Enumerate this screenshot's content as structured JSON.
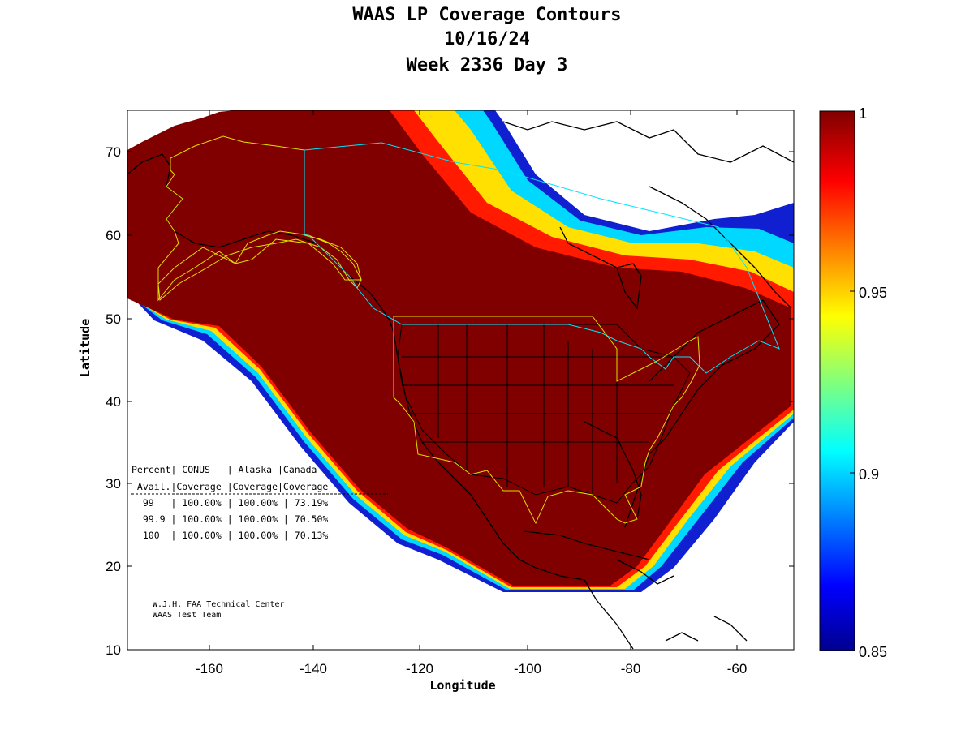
{
  "title": {
    "line1": "WAAS LP Coverage Contours",
    "line2": "10/16/24",
    "line3": "Week 2336 Day 3"
  },
  "axes": {
    "xlabel": "Longitude",
    "ylabel": "Latitude",
    "xticks": [
      "-160",
      "-140",
      "-120",
      "-100",
      "-80",
      "-60"
    ],
    "yticks": [
      "70",
      "60",
      "50",
      "40",
      "30",
      "20",
      "10"
    ]
  },
  "colorbar": {
    "ticks": [
      "1",
      "0.95",
      "0.9",
      "0.85"
    ],
    "colors": [
      "#800000",
      "#ff0000",
      "#ffff00",
      "#00ffff",
      "#0000ff",
      "#00008f"
    ]
  },
  "table": {
    "header1": "Percent| CONUS   | Alaska |Canada",
    "header2": " Avail.|Coverage |Coverage|Coverage",
    "rows": [
      "  99   | 100.00% | 100.00% | 73.19%",
      "  99.9 | 100.00% | 100.00% | 70.50%",
      "  100  | 100.00% | 100.00% | 70.13%"
    ]
  },
  "credit": {
    "line1": "W.J.H. FAA Technical Center",
    "line2": "WAAS Test Team"
  },
  "chart_data": {
    "type": "heatmap",
    "xlabel": "Longitude",
    "ylabel": "Latitude",
    "xlim": [
      -175,
      -50
    ],
    "ylim": [
      10,
      75
    ],
    "color_range": [
      0.85,
      1
    ],
    "colormap": "jet",
    "coverage_table": [
      {
        "percent_avail": "99",
        "conus": "100.00%",
        "alaska": "100.00%",
        "canada": "73.19%"
      },
      {
        "percent_avail": "99.9",
        "conus": "100.00%",
        "alaska": "100.00%",
        "canada": "70.50%"
      },
      {
        "percent_avail": "100",
        "conus": "100.00%",
        "alaska": "100.00%",
        "canada": "70.13%"
      }
    ]
  }
}
